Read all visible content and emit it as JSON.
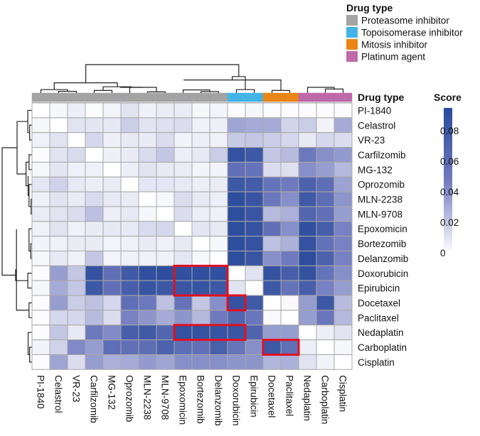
{
  "chart_data": {
    "type": "heatmap",
    "title": "",
    "xlabel": "",
    "ylabel": "",
    "columns": [
      "PI-1840",
      "Celastrol",
      "VR-23",
      "Carfilzomib",
      "MG-132",
      "Oprozomib",
      "MLN-2238",
      "MLN-9708",
      "Epoxomicin",
      "Bortezomib",
      "Delanzomib",
      "Doxorubicin",
      "Epirubicin",
      "Docetaxel",
      "Paclitaxel",
      "Nedaplatin",
      "Carboplatin",
      "Cisplatin"
    ],
    "rows": [
      "PI-1840",
      "Celastrol",
      "VR-23",
      "Carfilzomib",
      "MG-132",
      "Oprozomib",
      "MLN-2238",
      "MLN-9708",
      "Epoxomicin",
      "Bortezomib",
      "Delanzomib",
      "Doxorubicin",
      "Epirubicin",
      "Docetaxel",
      "Paclitaxel",
      "Nedaplatin",
      "Carboplatin",
      "Cisplatin"
    ],
    "column_drug_type": [
      "Proteasome inhibitor",
      "Proteasome inhibitor",
      "Proteasome inhibitor",
      "Proteasome inhibitor",
      "Proteasome inhibitor",
      "Proteasome inhibitor",
      "Proteasome inhibitor",
      "Proteasome inhibitor",
      "Proteasome inhibitor",
      "Proteasome inhibitor",
      "Proteasome inhibitor",
      "Topoisomerase inhibitor",
      "Topoisomerase inhibitor",
      "Mitosis inhibitor",
      "Mitosis inhibitor",
      "Platinum agent",
      "Platinum agent",
      "Platinum agent"
    ],
    "values": [
      [
        0.0,
        0.003,
        0.006,
        0.001,
        0.004,
        0.01,
        0.005,
        0.007,
        0.007,
        0.003,
        0.004,
        0.001,
        0.003,
        0.001,
        0.001,
        0.001,
        0.001,
        0.001
      ],
      [
        0.003,
        0.0,
        0.01,
        0.009,
        0.008,
        0.017,
        0.01,
        0.011,
        0.012,
        0.005,
        0.006,
        0.032,
        0.03,
        0.03,
        0.015,
        0.018,
        0.004,
        0.03
      ],
      [
        0.005,
        0.01,
        0.0,
        0.014,
        0.005,
        0.008,
        0.007,
        0.012,
        0.004,
        0.006,
        0.005,
        0.019,
        0.02,
        0.018,
        0.014,
        0.008,
        0.014,
        0.012
      ],
      [
        0.001,
        0.01,
        0.013,
        0.0,
        0.005,
        0.007,
        0.013,
        0.02,
        0.006,
        0.008,
        0.018,
        0.088,
        0.082,
        0.02,
        0.024,
        0.05,
        0.04,
        0.036
      ],
      [
        0.003,
        0.009,
        0.005,
        0.005,
        0.0,
        0.006,
        0.01,
        0.008,
        0.007,
        0.004,
        0.004,
        0.058,
        0.055,
        0.012,
        0.011,
        0.04,
        0.035,
        0.025
      ],
      [
        0.009,
        0.016,
        0.008,
        0.006,
        0.007,
        0.0,
        0.009,
        0.009,
        0.008,
        0.006,
        0.007,
        0.082,
        0.078,
        0.055,
        0.048,
        0.072,
        0.06,
        0.033
      ],
      [
        0.005,
        0.01,
        0.007,
        0.013,
        0.008,
        0.007,
        0.0,
        0.003,
        0.012,
        0.008,
        0.006,
        0.092,
        0.085,
        0.05,
        0.04,
        0.08,
        0.06,
        0.038
      ],
      [
        0.007,
        0.01,
        0.012,
        0.022,
        0.006,
        0.008,
        0.003,
        0.0,
        0.012,
        0.006,
        0.005,
        0.092,
        0.085,
        0.024,
        0.028,
        0.068,
        0.058,
        0.035
      ],
      [
        0.005,
        0.01,
        0.005,
        0.007,
        0.008,
        0.008,
        0.013,
        0.014,
        0.0,
        0.009,
        0.008,
        0.092,
        0.088,
        0.058,
        0.04,
        0.09,
        0.076,
        0.045
      ],
      [
        0.004,
        0.005,
        0.007,
        0.007,
        0.004,
        0.005,
        0.007,
        0.005,
        0.008,
        0.0,
        0.003,
        0.092,
        0.088,
        0.022,
        0.028,
        0.088,
        0.056,
        0.045
      ],
      [
        0.003,
        0.008,
        0.005,
        0.02,
        0.004,
        0.005,
        0.005,
        0.005,
        0.009,
        0.003,
        0.0,
        0.092,
        0.085,
        0.04,
        0.048,
        0.092,
        0.072,
        0.045
      ],
      [
        0.001,
        0.035,
        0.02,
        0.088,
        0.058,
        0.08,
        0.09,
        0.092,
        0.09,
        0.09,
        0.09,
        0.0,
        0.01,
        0.088,
        0.075,
        0.088,
        0.055,
        0.04
      ],
      [
        0.003,
        0.03,
        0.02,
        0.082,
        0.058,
        0.075,
        0.085,
        0.082,
        0.084,
        0.086,
        0.082,
        0.01,
        0.0,
        0.082,
        0.055,
        0.075,
        0.045,
        0.035
      ],
      [
        0.001,
        0.035,
        0.018,
        0.022,
        0.014,
        0.058,
        0.05,
        0.022,
        0.055,
        0.02,
        0.04,
        0.088,
        0.08,
        0.0,
        0.002,
        0.035,
        0.082,
        0.024
      ],
      [
        0.001,
        0.014,
        0.014,
        0.024,
        0.012,
        0.045,
        0.038,
        0.03,
        0.038,
        0.025,
        0.048,
        0.068,
        0.052,
        0.002,
        0.0,
        0.035,
        0.052,
        0.025
      ],
      [
        0.001,
        0.02,
        0.008,
        0.05,
        0.042,
        0.075,
        0.08,
        0.068,
        0.088,
        0.088,
        0.086,
        0.084,
        0.07,
        0.035,
        0.035,
        0.0,
        0.006,
        0.01
      ],
      [
        0.004,
        0.016,
        0.042,
        0.035,
        0.06,
        0.058,
        0.06,
        0.072,
        0.06,
        0.058,
        0.074,
        0.054,
        0.04,
        0.082,
        0.058,
        0.006,
        0.0,
        0.003
      ],
      [
        0.001,
        0.032,
        0.012,
        0.035,
        0.028,
        0.03,
        0.036,
        0.032,
        0.04,
        0.04,
        0.04,
        0.038,
        0.038,
        0.026,
        0.028,
        0.01,
        0.004,
        0.0
      ]
    ],
    "highlighted_regions": [
      {
        "rows": [
          "Doxorubicin",
          "Epirubicin"
        ],
        "columns": [
          "Epoxomicin",
          "Bortezomib",
          "Delanzomib"
        ]
      },
      {
        "rows": [
          "Docetaxel"
        ],
        "columns": [
          "Doxorubicin"
        ]
      },
      {
        "rows": [
          "Nedaplatin"
        ],
        "columns": [
          "Epoxomicin",
          "Bortezomib",
          "Delanzomib",
          "Doxorubicin"
        ]
      },
      {
        "rows": [
          "Carboplatin"
        ],
        "columns": [
          "Docetaxel",
          "Paclitaxel"
        ]
      }
    ],
    "colorbar": {
      "title": "Score",
      "ticks": [
        0,
        0.02,
        0.04,
        0.06,
        0.08
      ],
      "tick_labels": [
        "0",
        "0.02",
        "0.04",
        "0.06",
        "0.08"
      ],
      "range": [
        0,
        0.095
      ],
      "low_color": "#ffffff",
      "high_color": "#2a4b9b"
    },
    "annotation": {
      "title": "Drug type",
      "legend_title": "Drug type",
      "categories": [
        {
          "name": "Proteasome inhibitor",
          "color": "#a3a3a3"
        },
        {
          "name": "Topoisomerase inhibitor",
          "color": "#43b4e6"
        },
        {
          "name": "Mitosis inhibitor",
          "color": "#ea8515"
        },
        {
          "name": "Platinum agent",
          "color": "#bd69aa"
        }
      ]
    },
    "dendrograms": {
      "columns": true,
      "rows": true
    },
    "highlight_color": "#e3101e",
    "grid_color": "#a8a8a8"
  }
}
